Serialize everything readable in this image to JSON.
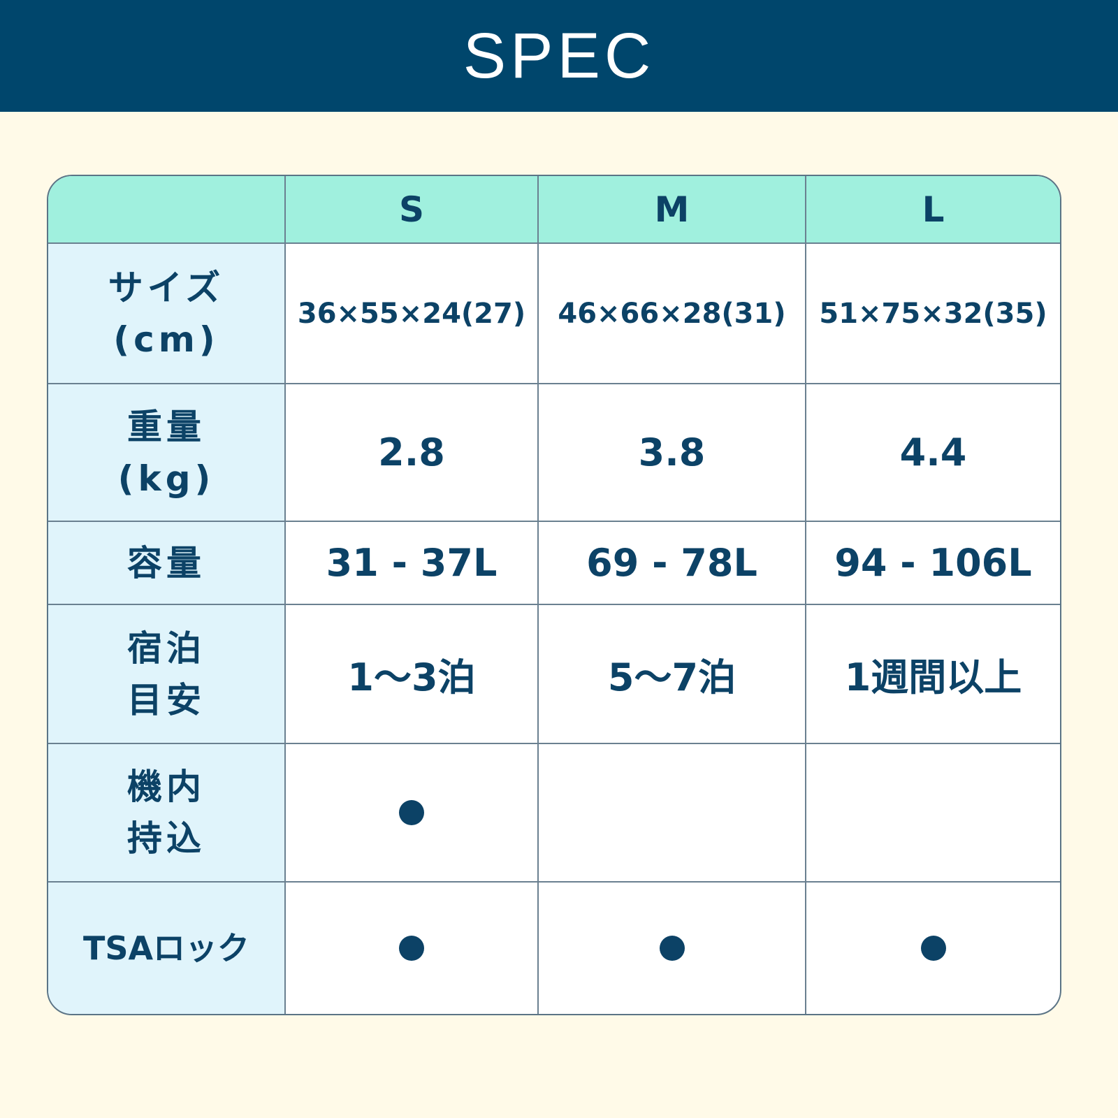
{
  "title": "SPEC",
  "columns": [
    "S",
    "M",
    "L"
  ],
  "rows": [
    {
      "label": "サイズ\n(cm)",
      "values": [
        "36×55×24(27)",
        "46×66×28(31)",
        "51×75×32(35)"
      ]
    },
    {
      "label": "重量\n(kg)",
      "values": [
        "2.8",
        "3.8",
        "4.4"
      ]
    },
    {
      "label": "容量",
      "values": [
        "31 - 37L",
        "69 - 78L",
        "94 - 106L"
      ]
    },
    {
      "label": "宿泊\n目安",
      "values": [
        "1〜3泊",
        "5〜7泊",
        "1週間以上"
      ]
    },
    {
      "label": "機内\n持込",
      "marks": [
        true,
        false,
        false
      ]
    },
    {
      "label": "TSAロック",
      "marks": [
        true,
        true,
        true
      ]
    }
  ],
  "colors": {
    "header": "#00466c",
    "background": "#fffae8",
    "column_header": "#a0f0de",
    "label_column": "#e0f4fb",
    "text": "#0c4266"
  }
}
